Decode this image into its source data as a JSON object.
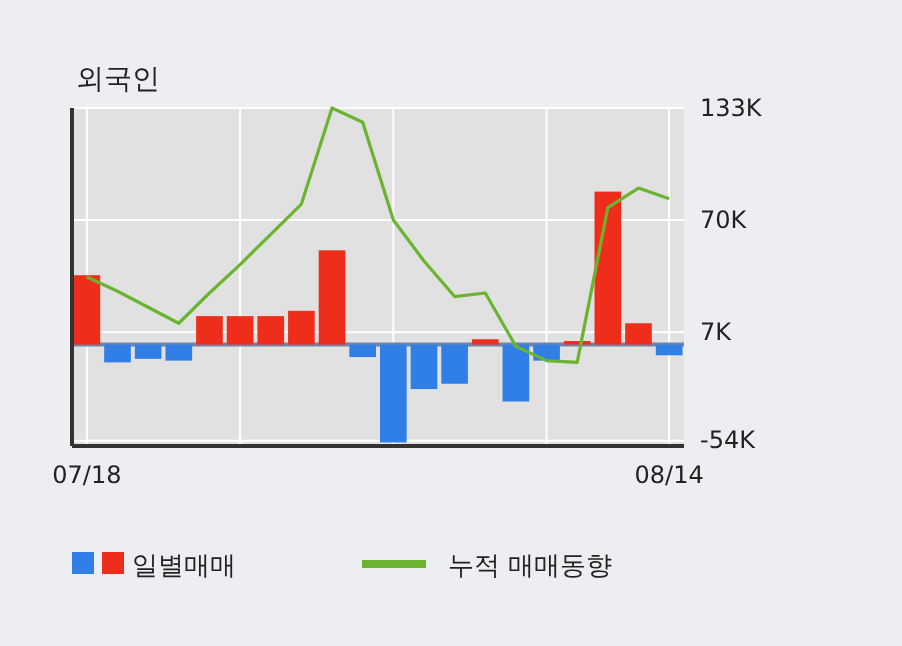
{
  "chart_data": {
    "type": "bar",
    "title": "외국인",
    "categories": [
      "07/18",
      null,
      null,
      null,
      null,
      null,
      null,
      null,
      null,
      null,
      null,
      null,
      null,
      null,
      null,
      null,
      null,
      null,
      null,
      "08/14"
    ],
    "series": [
      {
        "name": "일별매매",
        "colors": [
          "#ef2d1b",
          "#2f7fe6",
          "#2f7fe6",
          "#2f7fe6",
          "#ef2d1b",
          "#ef2d1b",
          "#ef2d1b",
          "#ef2d1b",
          "#ef2d1b",
          "#2f7fe6",
          "#2f7fe6",
          "#2f7fe6",
          "#2f7fe6",
          "#ef2d1b",
          "#2f7fe6",
          "#2f7fe6",
          "#ef2d1b",
          "#ef2d1b",
          "#ef2d1b",
          "#2f7fe6"
        ],
        "values": [
          39,
          -10,
          -8,
          -9,
          16,
          16,
          16,
          19,
          53,
          -7,
          -55,
          -25,
          -22,
          3,
          -32,
          -9,
          2,
          86,
          12,
          -6
        ]
      },
      {
        "name": "누적 매매동향",
        "type": "line",
        "color": "#6ab42f",
        "values": [
          38,
          30,
          21,
          12,
          29,
          45,
          62,
          79,
          133,
          125,
          70,
          47,
          27,
          29,
          -1,
          -9,
          -10,
          77,
          88,
          82
        ]
      }
    ],
    "ylim": [
      -57,
      133
    ],
    "yticks": [
      {
        "value": 133,
        "label": "133K"
      },
      {
        "value": 70,
        "label": "70K"
      },
      {
        "value": 7,
        "label": "7K"
      },
      {
        "value": -54,
        "label": "-54K"
      }
    ],
    "ref_lines": [
      {
        "axis": "y",
        "value": 0,
        "color": "#6f86a8"
      }
    ],
    "grid": true,
    "legend": "bottom"
  }
}
